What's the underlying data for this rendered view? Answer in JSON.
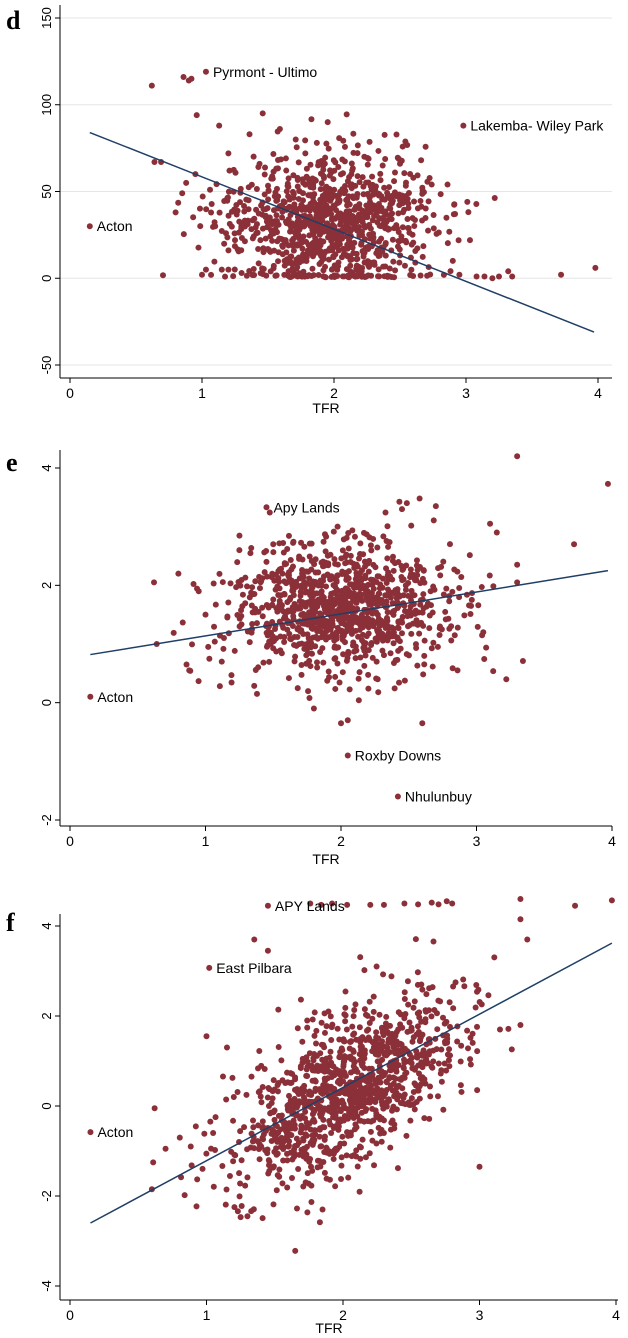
{
  "chart_data": [
    {
      "type": "scatter",
      "panel_label": "d",
      "xlabel": "TFR",
      "ylabel": "",
      "xlim": [
        0,
        4
      ],
      "ylim": [
        -50,
        150
      ],
      "xticks": [
        0,
        1,
        2,
        3,
        4
      ],
      "yticks": [
        -50,
        0,
        50,
        100,
        150
      ],
      "grid": true,
      "marker_color": "#8b3038",
      "line_color": "#1f3f66",
      "fit_line": [
        [
          0.15,
          84
        ],
        [
          3.97,
          -31
        ]
      ],
      "labeled_points": [
        {
          "x": 0.15,
          "y": 30,
          "label": "Acton"
        },
        {
          "x": 1.03,
          "y": 119,
          "label": "Pyrmont - Ultimo"
        },
        {
          "x": 2.98,
          "y": 88,
          "label": "Lakemba- Wiley Park"
        }
      ],
      "points": [
        [
          0.62,
          111
        ],
        [
          0.86,
          116
        ],
        [
          0.9,
          114
        ],
        [
          0.92,
          115
        ],
        [
          0.64,
          67
        ],
        [
          0.69,
          67
        ],
        [
          0.8,
          38
        ],
        [
          0.85,
          49
        ],
        [
          0.88,
          55
        ],
        [
          0.96,
          94
        ],
        [
          1.0,
          2
        ],
        [
          1.03,
          5
        ],
        [
          1.13,
          88
        ],
        [
          1.2,
          72
        ],
        [
          1.36,
          83
        ],
        [
          1.46,
          95
        ],
        [
          1.59,
          86
        ],
        [
          1.71,
          80
        ],
        [
          1.87,
          78
        ],
        [
          2.23,
          70
        ],
        [
          2.5,
          66
        ],
        [
          2.66,
          68
        ],
        [
          2.74,
          54
        ],
        [
          2.86,
          54
        ],
        [
          3.01,
          44
        ],
        [
          3.03,
          22
        ],
        [
          3.14,
          1
        ],
        [
          3.2,
          0
        ],
        [
          3.25,
          1
        ],
        [
          3.32,
          4
        ],
        [
          3.35,
          1
        ],
        [
          3.72,
          2
        ],
        [
          3.98,
          6
        ],
        [
          2.9,
          10
        ],
        [
          2.95,
          2
        ],
        [
          3.08,
          1
        ],
        [
          1.15,
          5
        ],
        [
          1.2,
          5
        ],
        [
          1.3,
          3
        ],
        [
          1.25,
          22
        ],
        [
          1.1,
          30
        ],
        [
          0.95,
          60
        ]
      ],
      "cloud": {
        "n": 1000,
        "cx": 1.95,
        "sx": 0.38,
        "cy": 32,
        "sy": 20,
        "seed": 11
      }
    },
    {
      "type": "scatter",
      "panel_label": "e",
      "xlabel": "TFR",
      "ylabel": "",
      "xlim": [
        0,
        4
      ],
      "ylim": [
        -2,
        4
      ],
      "xticks": [
        0,
        1,
        2,
        3,
        4
      ],
      "yticks": [
        -2,
        0,
        2,
        4
      ],
      "grid": false,
      "marker_color": "#8b3038",
      "line_color": "#1f3f66",
      "fit_line": [
        [
          0.15,
          0.82
        ],
        [
          3.97,
          2.25
        ]
      ],
      "labeled_points": [
        {
          "x": 0.15,
          "y": 0.1,
          "label": "Acton"
        },
        {
          "x": 1.45,
          "y": 3.33,
          "label": "Apy Lands"
        },
        {
          "x": 2.05,
          "y": -0.9,
          "label": "Roxby Downs"
        },
        {
          "x": 2.42,
          "y": -1.6,
          "label": "Nhulunbuy"
        }
      ],
      "points": [
        [
          3.3,
          4.2
        ],
        [
          3.97,
          3.73
        ],
        [
          3.72,
          2.7
        ],
        [
          3.3,
          2.35
        ],
        [
          3.3,
          2.05
        ],
        [
          0.62,
          2.05
        ],
        [
          0.64,
          1.0
        ],
        [
          0.8,
          2.2
        ],
        [
          0.86,
          0.65
        ],
        [
          0.88,
          0.55
        ],
        [
          1.02,
          0.95
        ],
        [
          1.12,
          0.7
        ],
        [
          1.25,
          2.6
        ],
        [
          1.0,
          1.5
        ],
        [
          0.95,
          1.9
        ],
        [
          2.0,
          -0.35
        ],
        [
          2.05,
          -0.3
        ],
        [
          2.6,
          -0.35
        ],
        [
          1.8,
          -0.1
        ],
        [
          2.86,
          0.55
        ],
        [
          3.22,
          0.4
        ],
        [
          3.05,
          1.2
        ],
        [
          2.7,
          3.35
        ],
        [
          2.45,
          3.3
        ],
        [
          2.58,
          3.48
        ],
        [
          1.5,
          2.7
        ],
        [
          1.45,
          2.4
        ],
        [
          3.1,
          3.05
        ],
        [
          3.15,
          2.9
        ],
        [
          1.38,
          0.15
        ]
      ],
      "cloud": {
        "n": 1000,
        "cx": 1.98,
        "sx": 0.4,
        "cy": 1.6,
        "sy": 0.55,
        "seed": 23
      }
    },
    {
      "type": "scatter",
      "panel_label": "f",
      "xlabel": "TFR",
      "ylabel": "",
      "xlim": [
        0,
        4
      ],
      "ylim": [
        -4,
        4
      ],
      "xticks": [
        0,
        1,
        2,
        3,
        4
      ],
      "yticks": [
        -4,
        -2,
        0,
        2,
        4
      ],
      "grid": false,
      "marker_color": "#8b3038",
      "line_color": "#1f3f66",
      "fit_line": [
        [
          0.15,
          -2.6
        ],
        [
          3.97,
          3.62
        ]
      ],
      "labeled_points": [
        {
          "x": 0.15,
          "y": -0.58,
          "label": "Acton"
        },
        {
          "x": 1.45,
          "y": 4.45,
          "label": "APY Lands"
        },
        {
          "x": 1.02,
          "y": 3.07,
          "label": "East Pilbara"
        }
      ],
      "points": [
        [
          1.76,
          4.5
        ],
        [
          1.84,
          4.47
        ],
        [
          1.92,
          4.5
        ],
        [
          2.03,
          4.47
        ],
        [
          2.2,
          4.47
        ],
        [
          2.3,
          4.47
        ],
        [
          2.45,
          4.5
        ],
        [
          2.55,
          4.48
        ],
        [
          2.65,
          4.52
        ],
        [
          2.7,
          4.48
        ],
        [
          2.76,
          4.55
        ],
        [
          2.8,
          4.5
        ],
        [
          3.3,
          4.6
        ],
        [
          3.7,
          4.45
        ],
        [
          3.97,
          4.57
        ],
        [
          3.3,
          4.15
        ],
        [
          3.35,
          3.7
        ],
        [
          1.45,
          3.45
        ],
        [
          1.35,
          3.7
        ],
        [
          0.6,
          -1.85
        ],
        [
          0.62,
          -0.05
        ],
        [
          0.7,
          -0.95
        ],
        [
          0.84,
          -1.98
        ],
        [
          1.25,
          -2.47
        ],
        [
          1.3,
          -2.45
        ],
        [
          1.65,
          -3.22
        ],
        [
          1.85,
          -2.3
        ],
        [
          3.0,
          -1.35
        ],
        [
          3.15,
          1.7
        ],
        [
          3.3,
          1.8
        ],
        [
          1.0,
          1.55
        ],
        [
          1.15,
          1.3
        ],
        [
          1.2,
          0.2
        ]
      ],
      "cloud": {
        "n": 1100,
        "cx": 2.02,
        "sx": 0.42,
        "cy": 0.35,
        "sy": 1.05,
        "corr": 0.62,
        "seed": 37
      }
    }
  ]
}
